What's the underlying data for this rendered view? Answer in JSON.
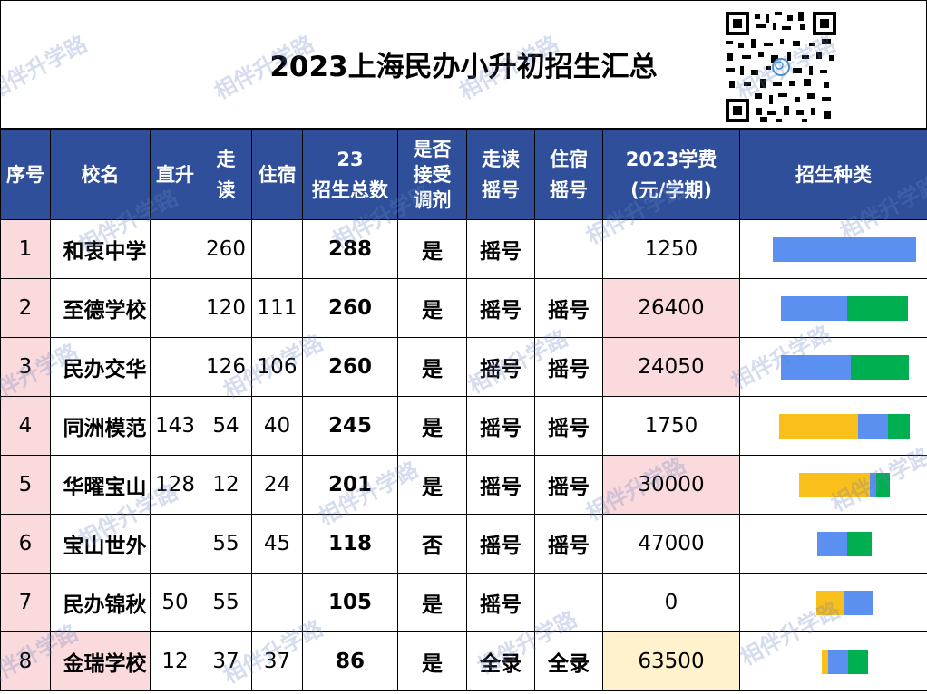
{
  "title": "2023上海民办小升初招生汇总",
  "watermark": "相伴升学路",
  "headers": {
    "seq": "序号",
    "name": "校名",
    "zhisheng": "直升",
    "zoudu": "走读",
    "zhusu": "住宿",
    "total": "23招生总数",
    "tiaoji": "是否接受调剂",
    "zoudu_yaohao": "走读摇号",
    "zhusu_yaohao": "住宿摇号",
    "fee": "2023学费(元/学期)",
    "types": "招生种类"
  },
  "colors": {
    "zhisheng": "#f9bf1b",
    "zoudu": "#5b8ff0",
    "zhusu": "#00b050"
  },
  "rows": [
    {
      "seq": "1",
      "name": "和衷中学",
      "zhisheng": "",
      "zoudu": "260",
      "zhusu": "",
      "total": "288",
      "tiaoji": "是",
      "zoudu_yaohao": "摇号",
      "zhusu_yaohao": "",
      "fee": "1250",
      "bar": {
        "zhisheng": 0,
        "zoudu": 260,
        "zhusu": 0
      }
    },
    {
      "seq": "2",
      "name": "至德学校",
      "zhisheng": "",
      "zoudu": "120",
      "zhusu": "111",
      "total": "260",
      "tiaoji": "是",
      "zoudu_yaohao": "摇号",
      "zhusu_yaohao": "摇号",
      "fee": "26400",
      "bar": {
        "zhisheng": 0,
        "zoudu": 120,
        "zhusu": 111
      }
    },
    {
      "seq": "3",
      "name": "民办交华",
      "zhisheng": "",
      "zoudu": "126",
      "zhusu": "106",
      "total": "260",
      "tiaoji": "是",
      "zoudu_yaohao": "摇号",
      "zhusu_yaohao": "摇号",
      "fee": "24050",
      "bar": {
        "zhisheng": 0,
        "zoudu": 126,
        "zhusu": 106
      }
    },
    {
      "seq": "4",
      "name": "同洲模范",
      "zhisheng": "143",
      "zoudu": "54",
      "zhusu": "40",
      "total": "245",
      "tiaoji": "是",
      "zoudu_yaohao": "摇号",
      "zhusu_yaohao": "摇号",
      "fee": "1750",
      "bar": {
        "zhisheng": 143,
        "zoudu": 54,
        "zhusu": 40
      }
    },
    {
      "seq": "5",
      "name": "华曜宝山",
      "zhisheng": "128",
      "zoudu": "12",
      "zhusu": "24",
      "total": "201",
      "tiaoji": "是",
      "zoudu_yaohao": "摇号",
      "zhusu_yaohao": "摇号",
      "fee": "30000",
      "bar": {
        "zhisheng": 128,
        "zoudu": 12,
        "zhusu": 24
      }
    },
    {
      "seq": "6",
      "name": "宝山世外",
      "zhisheng": "",
      "zoudu": "55",
      "zhusu": "45",
      "total": "118",
      "tiaoji": "否",
      "zoudu_yaohao": "摇号",
      "zhusu_yaohao": "摇号",
      "fee": "47000",
      "bar": {
        "zhisheng": 0,
        "zoudu": 55,
        "zhusu": 45
      }
    },
    {
      "seq": "7",
      "name": "民办锦秋",
      "zhisheng": "50",
      "zoudu": "55",
      "zhusu": "",
      "total": "105",
      "tiaoji": "是",
      "zoudu_yaohao": "摇号",
      "zhusu_yaohao": "",
      "fee": "0",
      "bar": {
        "zhisheng": 50,
        "zoudu": 55,
        "zhusu": 0
      }
    },
    {
      "seq": "8",
      "name": "金瑞学校",
      "zhisheng": "12",
      "zoudu": "37",
      "zhusu": "37",
      "total": "86",
      "tiaoji": "是",
      "zoudu_yaohao": "全录",
      "zhusu_yaohao": "全录",
      "fee": "63500",
      "bar": {
        "zhisheng": 12,
        "zoudu": 37,
        "zhusu": 37
      }
    }
  ],
  "bar_scale_max": 260
}
